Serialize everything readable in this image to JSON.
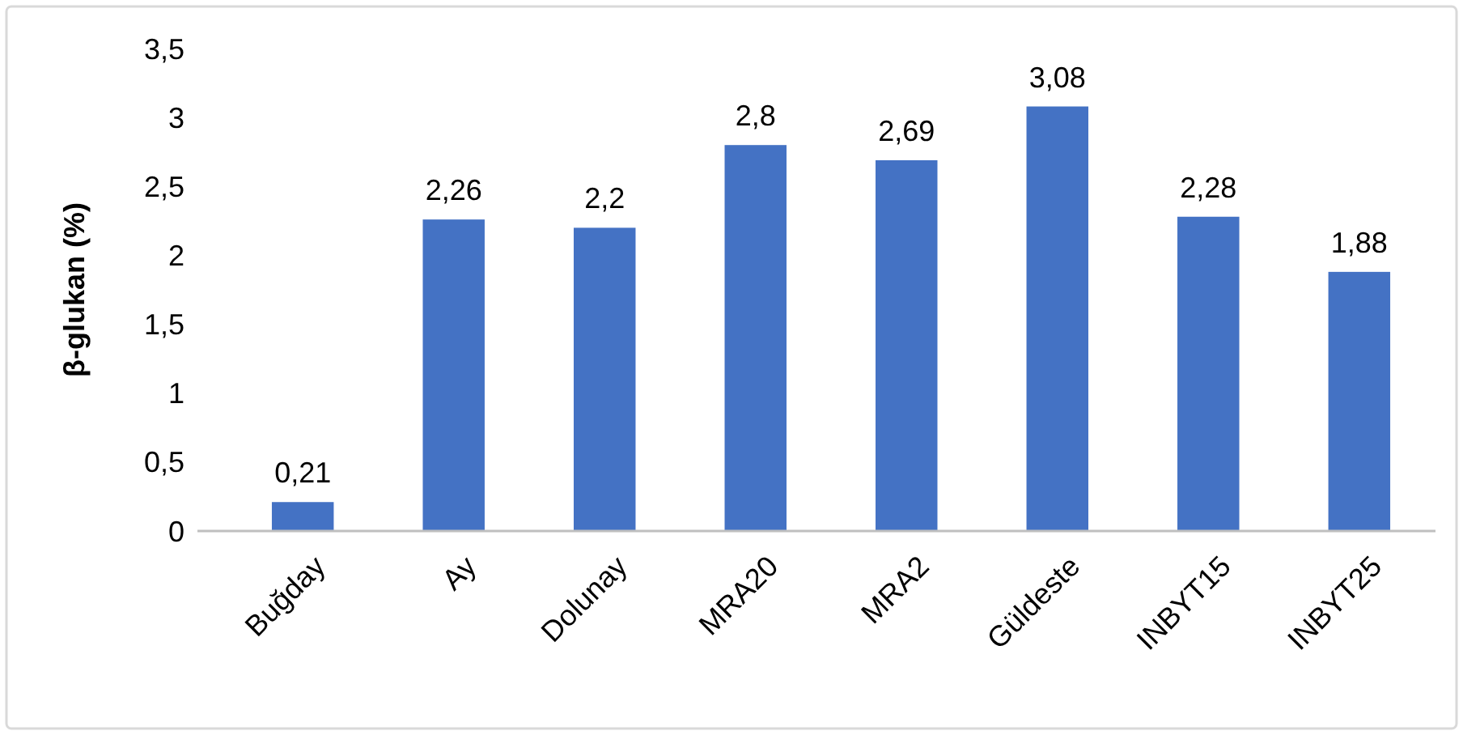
{
  "chart_data": {
    "type": "bar",
    "ylabel": "β-glukan (%)",
    "categories": [
      "Buğday",
      "Ay",
      "Dolunay",
      "MRA20",
      "MRA2",
      "Güldeste",
      "INBYT15",
      "INBYT25"
    ],
    "values": [
      0.21,
      2.26,
      2.2,
      2.8,
      2.69,
      3.08,
      2.28,
      1.88
    ],
    "value_labels": [
      "0,21",
      "2,26",
      "2,2",
      "2,8",
      "2,69",
      "3,08",
      "2,28",
      "1,88"
    ],
    "color": "#4472c4",
    "ylim": [
      0,
      3.5
    ],
    "yticks": [
      0,
      {
        "value": 0.5,
        "label": "0,5"
      },
      1,
      {
        "value": 1.5,
        "label": "1,5"
      },
      2,
      {
        "value": 2.5,
        "label": "2,5"
      },
      3,
      {
        "value": 3.5,
        "label": "3,5"
      }
    ],
    "grid": false
  }
}
